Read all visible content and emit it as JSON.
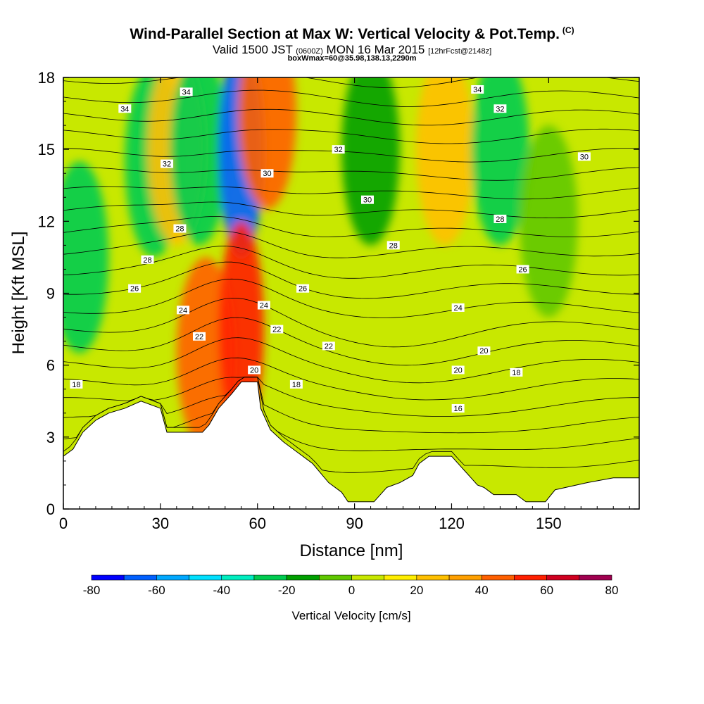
{
  "header": {
    "title": "Wind-Parallel Section at Max W: Vertical Velocity & Pot.Temp.",
    "copyright": "(C)",
    "valid_time_prefix": "Valid 1500 JST",
    "utc_time": "(0600Z)",
    "valid_date": "MON 16 Mar 2015",
    "forecast_info": "[12hrFcst@2148z]",
    "box_info": "boxWmax=60@35.98,138.13,2290m"
  },
  "chart_data": {
    "type": "contour-section",
    "xlabel": "Distance [nm]",
    "ylabel": "Height [Kft MSL]",
    "xlim": [
      0,
      178
    ],
    "ylim": [
      0,
      18
    ],
    "x_ticks": [
      0,
      30,
      60,
      90,
      120,
      150
    ],
    "x_tick_labels": [
      "0",
      "30",
      "60",
      "90",
      "120",
      "150"
    ],
    "y_ticks": [
      0,
      3,
      6,
      9,
      12,
      15,
      18
    ],
    "y_tick_labels": [
      "0",
      "3",
      "6",
      "9",
      "12",
      "15",
      "18"
    ],
    "terrain": [
      [
        0,
        2.2
      ],
      [
        3,
        2.5
      ],
      [
        6,
        3.2
      ],
      [
        10,
        3.7
      ],
      [
        14,
        4.0
      ],
      [
        19,
        4.2
      ],
      [
        24,
        4.5
      ],
      [
        30,
        4.2
      ],
      [
        32,
        3.2
      ],
      [
        36,
        3.2
      ],
      [
        43,
        3.2
      ],
      [
        45,
        3.5
      ],
      [
        48,
        4.2
      ],
      [
        52,
        4.8
      ],
      [
        55,
        5.3
      ],
      [
        60,
        5.3
      ],
      [
        61,
        4.2
      ],
      [
        64,
        3.3
      ],
      [
        68,
        2.8
      ],
      [
        72,
        2.4
      ],
      [
        77,
        1.9
      ],
      [
        82,
        1.1
      ],
      [
        86,
        0.7
      ],
      [
        88,
        0.3
      ],
      [
        96,
        0.3
      ],
      [
        100,
        0.9
      ],
      [
        104,
        1.1
      ],
      [
        108,
        1.4
      ],
      [
        110,
        1.9
      ],
      [
        113,
        2.2
      ],
      [
        120,
        2.2
      ],
      [
        122,
        1.9
      ],
      [
        124,
        1.6
      ],
      [
        126,
        1.3
      ],
      [
        128,
        1.0
      ],
      [
        130,
        0.9
      ],
      [
        133,
        0.6
      ],
      [
        140,
        0.6
      ],
      [
        143,
        0.3
      ],
      [
        149,
        0.3
      ],
      [
        152,
        0.8
      ],
      [
        162,
        1.1
      ],
      [
        170,
        1.3
      ],
      [
        178,
        1.3
      ]
    ],
    "colorbar": {
      "label": "Vertical Velocity [cm/s]",
      "ticks": [
        -80,
        -60,
        -40,
        -20,
        0,
        20,
        40,
        60,
        80
      ],
      "tick_labels": [
        "-80",
        "-60",
        "-40",
        "-20",
        "0",
        "20",
        "40",
        "60",
        "80"
      ],
      "bounds": [
        -80,
        -70,
        -60,
        -50,
        -40,
        -30,
        -20,
        -10,
        0,
        10,
        20,
        30,
        40,
        50,
        60,
        70,
        80
      ],
      "colors": [
        "#0000ff",
        "#0060ff",
        "#00a8ff",
        "#00e0ff",
        "#00eec0",
        "#00cc50",
        "#00a000",
        "#60c800",
        "#c8e800",
        "#ffee00",
        "#ffc000",
        "#ffa000",
        "#ff6000",
        "#ff2000",
        "#d00020",
        "#a00050",
        "#70008c"
      ]
    },
    "vertical_velocity_features": [
      {
        "x": 5,
        "y": 10.5,
        "w": -25
      },
      {
        "x": 28,
        "y": 14.5,
        "w": -25
      },
      {
        "x": 35,
        "y": 15,
        "w": 25
      },
      {
        "x": 42,
        "y": 15,
        "w": -25
      },
      {
        "x": 44,
        "y": 6.5,
        "w": 40
      },
      {
        "x": 55,
        "y": 15,
        "w": -70
      },
      {
        "x": 55,
        "y": 7.5,
        "w": 55
      },
      {
        "x": 63,
        "y": 16.5,
        "w": 45
      },
      {
        "x": 95,
        "y": 15,
        "w": -15
      },
      {
        "x": 118,
        "y": 15,
        "w": 20
      },
      {
        "x": 135,
        "y": 15,
        "w": -25
      },
      {
        "x": 150,
        "y": 12,
        "w": -10
      }
    ],
    "theta_label_values": [
      "34",
      "34",
      "34",
      "32",
      "32",
      "32",
      "30",
      "30",
      "30",
      "28",
      "28",
      "28",
      "28",
      "26",
      "26",
      "26",
      "24",
      "24",
      "24",
      "22",
      "22",
      "22",
      "20",
      "20",
      "20",
      "18",
      "18",
      "18",
      "16"
    ]
  }
}
